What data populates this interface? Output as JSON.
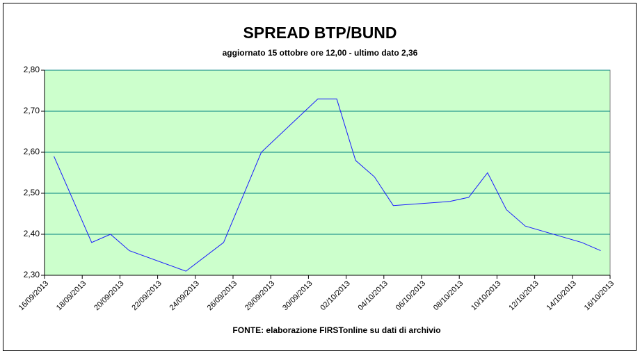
{
  "chart_data": {
    "type": "line",
    "title": "SPREAD BTP/BUND",
    "subtitle": "aggiornato 15 ottobre ore 12,00 - ultimo dato 2,36",
    "source": "FONTE: elaborazione FIRSTonline su dati di archivio",
    "x": [
      "16/09/2013",
      "18/09/2013",
      "19/09/2013",
      "20/09/2013",
      "23/09/2013",
      "25/09/2013",
      "27/09/2013",
      "30/09/2013",
      "01/10/2013",
      "02/10/2013",
      "03/10/2013",
      "04/10/2013",
      "07/10/2013",
      "08/10/2013",
      "09/10/2013",
      "10/10/2013",
      "11/10/2013",
      "14/10/2013",
      "15/10/2013"
    ],
    "series": [
      {
        "name": "spread",
        "color": "#1a1aff",
        "values": [
          2.59,
          2.38,
          2.4,
          2.36,
          2.31,
          2.38,
          2.6,
          2.73,
          2.73,
          2.58,
          2.54,
          2.47,
          2.48,
          2.49,
          2.55,
          2.46,
          2.42,
          2.38,
          2.36
        ]
      }
    ],
    "xlim": [
      "16/09/2013",
      "16/10/2013"
    ],
    "xticks": [
      "16/09/2013",
      "18/09/2013",
      "20/09/2013",
      "22/09/2013",
      "24/09/2013",
      "26/09/2013",
      "28/09/2013",
      "30/09/2013",
      "02/10/2013",
      "04/10/2013",
      "06/10/2013",
      "08/10/2013",
      "10/10/2013",
      "12/10/2013",
      "14/10/2013",
      "16/10/2013"
    ],
    "ylim": [
      2.3,
      2.8
    ],
    "yticks": [
      {
        "value": 2.3,
        "label": "2,30"
      },
      {
        "value": 2.4,
        "label": "2,40"
      },
      {
        "value": 2.5,
        "label": "2,50"
      },
      {
        "value": 2.6,
        "label": "2,60"
      },
      {
        "value": 2.7,
        "label": "2,70"
      },
      {
        "value": 2.8,
        "label": "2,80"
      }
    ],
    "grid": true,
    "background": "#ccffcc"
  }
}
